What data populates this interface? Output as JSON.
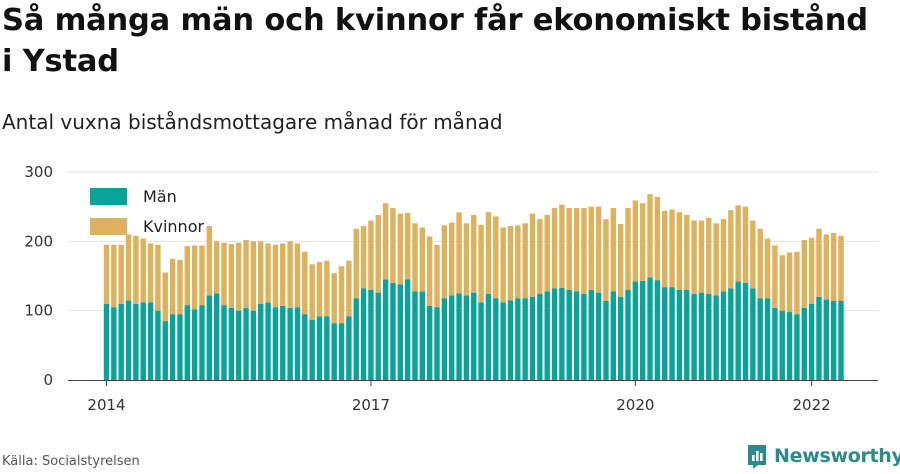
{
  "title": "Så många män och kvinnor får ekonomiskt bistånd i Ystad",
  "subtitle": "Antal vuxna biståndsmottagare månad för månad",
  "source": "Källa: Socialstyrelsen",
  "brand": "Newsworthy",
  "colors": {
    "men": "#0aa39a",
    "women": "#deb25d",
    "grid": "#e3e3e3",
    "axis": "#444444",
    "brand": "#2b8a8a"
  },
  "chart_data": {
    "type": "bar",
    "stacked": true,
    "ylim": [
      0,
      300
    ],
    "yticks": [
      0,
      100,
      200,
      300
    ],
    "xticks": [
      {
        "label": "2014",
        "month": "2014-01"
      },
      {
        "label": "2017",
        "month": "2017-01"
      },
      {
        "label": "2020",
        "month": "2020-01"
      },
      {
        "label": "2022",
        "month": "2022-01"
      }
    ],
    "legend_position": "top-left",
    "x": [
      "2014-01",
      "2014-02",
      "2014-03",
      "2014-04",
      "2014-05",
      "2014-06",
      "2014-07",
      "2014-08",
      "2014-09",
      "2014-10",
      "2014-11",
      "2014-12",
      "2015-01",
      "2015-02",
      "2015-03",
      "2015-04",
      "2015-05",
      "2015-06",
      "2015-07",
      "2015-08",
      "2015-09",
      "2015-10",
      "2015-11",
      "2015-12",
      "2016-01",
      "2016-02",
      "2016-03",
      "2016-04",
      "2016-05",
      "2016-06",
      "2016-07",
      "2016-08",
      "2016-09",
      "2016-10",
      "2016-11",
      "2016-12",
      "2017-01",
      "2017-02",
      "2017-03",
      "2017-04",
      "2017-05",
      "2017-06",
      "2017-07",
      "2017-08",
      "2017-09",
      "2017-10",
      "2017-11",
      "2017-12",
      "2018-01",
      "2018-02",
      "2018-03",
      "2018-04",
      "2018-05",
      "2018-06",
      "2018-07",
      "2018-08",
      "2018-09",
      "2018-10",
      "2018-11",
      "2018-12",
      "2019-01",
      "2019-02",
      "2019-03",
      "2019-04",
      "2019-05",
      "2019-06",
      "2019-07",
      "2019-08",
      "2019-09",
      "2019-10",
      "2019-11",
      "2019-12",
      "2020-01",
      "2020-02",
      "2020-03",
      "2020-04",
      "2020-05",
      "2020-06",
      "2020-07",
      "2020-08",
      "2020-09",
      "2020-10",
      "2020-11",
      "2020-12",
      "2021-01",
      "2021-02",
      "2021-03",
      "2021-04",
      "2021-05",
      "2021-06",
      "2021-07",
      "2021-08",
      "2021-09",
      "2021-10",
      "2021-11",
      "2021-12",
      "2022-01",
      "2022-02",
      "2022-03",
      "2022-04",
      "2022-05"
    ],
    "series": [
      {
        "name": "Män",
        "values": [
          110,
          105,
          110,
          115,
          110,
          112,
          112,
          100,
          85,
          95,
          95,
          108,
          102,
          108,
          122,
          125,
          108,
          104,
          100,
          104,
          100,
          110,
          112,
          105,
          107,
          104,
          105,
          95,
          87,
          92,
          92,
          82,
          82,
          92,
          118,
          132,
          130,
          126,
          145,
          140,
          138,
          145,
          128,
          128,
          107,
          105,
          118,
          122,
          125,
          122,
          126,
          112,
          124,
          118,
          112,
          115,
          118,
          118,
          120,
          124,
          128,
          132,
          133,
          130,
          128,
          124,
          130,
          126,
          114,
          128,
          120,
          130,
          142,
          143,
          148,
          144,
          134,
          134,
          130,
          130,
          124,
          126,
          124,
          122,
          128,
          132,
          142,
          140,
          132,
          118,
          118,
          104,
          100,
          98,
          95,
          104,
          110,
          120,
          116,
          114,
          114
        ]
      },
      {
        "name": "Kvinnor",
        "values": [
          85,
          90,
          85,
          95,
          98,
          92,
          85,
          95,
          70,
          80,
          78,
          85,
          92,
          86,
          100,
          75,
          90,
          92,
          98,
          98,
          100,
          90,
          85,
          90,
          90,
          96,
          92,
          90,
          80,
          78,
          80,
          72,
          82,
          80,
          100,
          90,
          100,
          112,
          110,
          108,
          102,
          96,
          98,
          92,
          100,
          90,
          105,
          105,
          117,
          104,
          112,
          112,
          118,
          118,
          108,
          107,
          105,
          108,
          120,
          108,
          110,
          116,
          120,
          118,
          120,
          124,
          120,
          124,
          118,
          120,
          105,
          118,
          117,
          112,
          120,
          120,
          110,
          112,
          112,
          108,
          106,
          104,
          110,
          104,
          104,
          113,
          110,
          110,
          98,
          100,
          86,
          90,
          80,
          86,
          90,
          98,
          95,
          98,
          94,
          98,
          94
        ]
      }
    ]
  }
}
